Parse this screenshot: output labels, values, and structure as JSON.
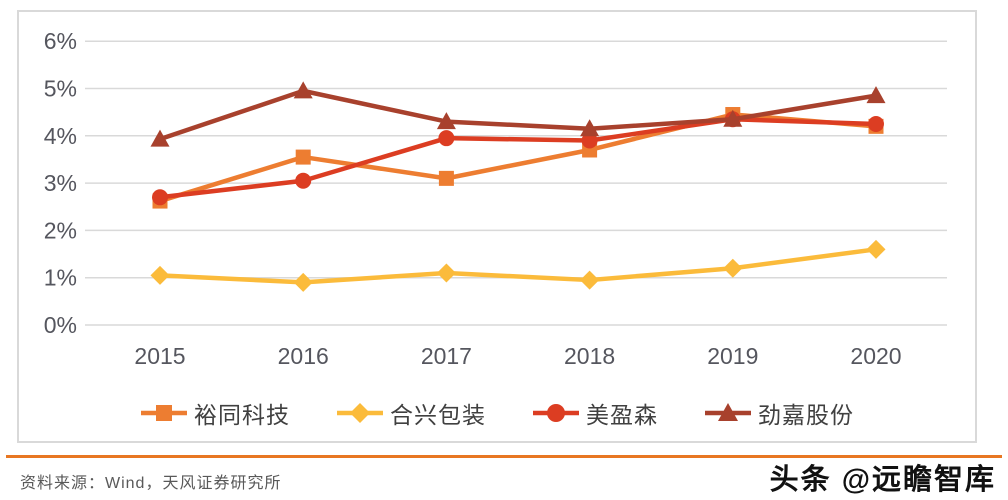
{
  "source_note": "资料来源：Wind，天风证券研究所",
  "watermark": "头条 @远瞻智库",
  "colors": {
    "divider": "#E87722",
    "grid": "#D9D9D9",
    "frame_border": "#D9D9D9",
    "axis_text": "#55565E",
    "legend_text": "#404040",
    "source_text": "#595959"
  },
  "chart_data": {
    "type": "line",
    "title": "",
    "categories": [
      "2015",
      "2016",
      "2017",
      "2018",
      "2019",
      "2020"
    ],
    "series": [
      {
        "name": "裕同科技",
        "marker": "square",
        "color": "#ED7D31",
        "values": [
          2.62,
          3.55,
          3.1,
          3.7,
          4.45,
          4.2
        ]
      },
      {
        "name": "合兴包装",
        "marker": "diamond",
        "color": "#FBBB3B",
        "values": [
          1.05,
          0.9,
          1.1,
          0.95,
          1.2,
          1.6
        ]
      },
      {
        "name": "美盈森",
        "marker": "circle",
        "color": "#DC3D22",
        "values": [
          2.7,
          3.05,
          3.95,
          3.9,
          4.35,
          4.25
        ]
      },
      {
        "name": "劲嘉股份",
        "marker": "triangle",
        "color": "#A8412D",
        "values": [
          3.93,
          4.95,
          4.3,
          4.15,
          4.35,
          4.85
        ]
      }
    ],
    "ylim": [
      0,
      6
    ],
    "yticks": [
      "0%",
      "1%",
      "2%",
      "3%",
      "4%",
      "5%",
      "6%"
    ],
    "grid": true,
    "legend_position": "bottom",
    "xlabel": "",
    "ylabel": ""
  }
}
